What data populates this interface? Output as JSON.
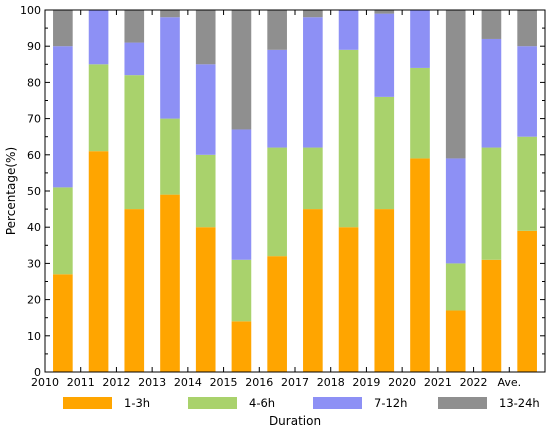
{
  "chart_data": {
    "type": "bar",
    "stacked": true,
    "title": "",
    "xlabel": "Duration",
    "ylabel": "Percentage(%)",
    "ylim": [
      0,
      100
    ],
    "yticks": [
      0,
      10,
      20,
      30,
      40,
      50,
      60,
      70,
      80,
      90,
      100
    ],
    "grid": false,
    "legend_position": "bottom",
    "categories": [
      "2010",
      "2011",
      "2012",
      "2013",
      "2014",
      "2015",
      "2016",
      "2017",
      "2018",
      "2019",
      "2020",
      "2021",
      "2022",
      "Ave."
    ],
    "series": [
      {
        "name": "1-3h",
        "color": "#FFA500",
        "values": [
          27,
          61,
          45,
          49,
          40,
          14,
          32,
          45,
          40,
          45,
          59,
          17,
          31,
          39
        ]
      },
      {
        "name": "4-6h",
        "color": "#A9D26C",
        "values": [
          24,
          24,
          37,
          21,
          20,
          17,
          30,
          17,
          49,
          31,
          25,
          13,
          31,
          26
        ]
      },
      {
        "name": "7-12h",
        "color": "#8D90F5",
        "values": [
          39,
          15,
          9,
          28,
          25,
          36,
          27,
          36,
          11,
          23,
          16,
          29,
          30,
          25
        ]
      },
      {
        "name": "13-24h",
        "color": "#8F8F8F",
        "values": [
          10,
          0,
          9,
          2,
          15,
          33,
          11,
          2,
          0,
          1,
          0,
          41,
          8,
          10
        ]
      }
    ]
  }
}
